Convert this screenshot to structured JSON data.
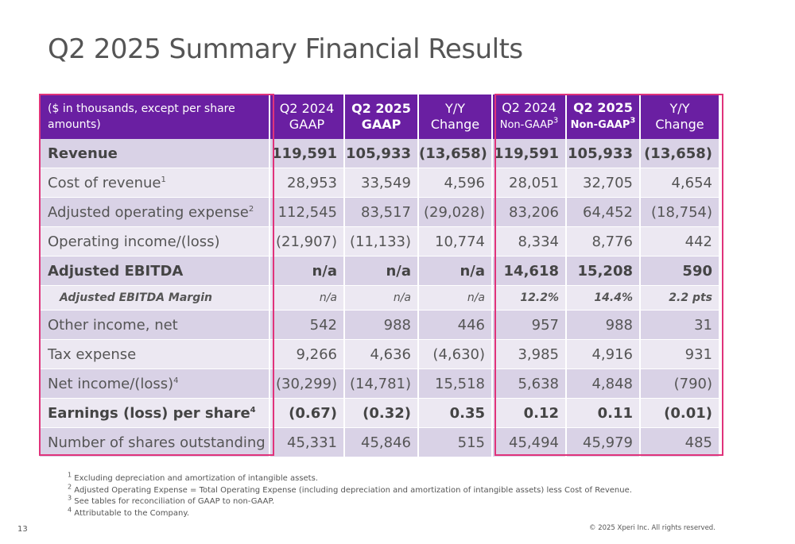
{
  "title": "Q2 2025 Summary Financial Results",
  "table": {
    "header": {
      "label": "($ in thousands, except per share amounts)",
      "cols": [
        {
          "line1": "Q2 2024",
          "line2": "GAAP",
          "sup": ""
        },
        {
          "line1": "Q2 2025",
          "line2": "GAAP",
          "sup": ""
        },
        {
          "line1": "Y/Y",
          "line2": "Change",
          "sup": ""
        },
        {
          "line1": "Q2 2024",
          "line2": "Non-GAAP",
          "sup": "3"
        },
        {
          "line1": "Q2 2025",
          "line2": "Non-GAAP",
          "sup": "3"
        },
        {
          "line1": "Y/Y",
          "line2": "Change",
          "sup": ""
        }
      ]
    },
    "rows": [
      {
        "label": "Revenue",
        "sup": "",
        "values": [
          "119,591",
          "105,933",
          "(13,658)",
          "119,591",
          "105,933",
          "(13,658)"
        ]
      },
      {
        "label": "Cost of revenue",
        "sup": "1",
        "values": [
          "28,953",
          "33,549",
          "4,596",
          "28,051",
          "32,705",
          "4,654"
        ]
      },
      {
        "label": "Adjusted operating expense",
        "sup": "2",
        "values": [
          "112,545",
          "83,517",
          "(29,028)",
          "83,206",
          "64,452",
          "(18,754)"
        ]
      },
      {
        "label": "Operating income/(loss)",
        "sup": "",
        "values": [
          "(21,907)",
          "(11,133)",
          "10,774",
          "8,334",
          "8,776",
          "442"
        ]
      },
      {
        "label": "Adjusted EBITDA",
        "sup": "",
        "values": [
          "n/a",
          "n/a",
          "n/a",
          "14,618",
          "15,208",
          "590"
        ]
      },
      {
        "label": "Adjusted EBITDA Margin",
        "sup": "",
        "values": [
          "n/a",
          "n/a",
          "n/a",
          "12.2%",
          "14.4%",
          "2.2 pts"
        ]
      },
      {
        "label": "Other income, net",
        "sup": "",
        "values": [
          "542",
          "988",
          "446",
          "957",
          "988",
          "31"
        ]
      },
      {
        "label": "Tax expense",
        "sup": "",
        "values": [
          "9,266",
          "4,636",
          "(4,630)",
          "3,985",
          "4,916",
          "931"
        ]
      },
      {
        "label": "Net income/(loss)",
        "sup": "4",
        "values": [
          "(30,299)",
          "(14,781)",
          "15,518",
          "5,638",
          "4,848",
          "(790)"
        ]
      },
      {
        "label": "Earnings (loss) per share",
        "sup": "4",
        "values": [
          "(0.67)",
          "(0.32)",
          "0.35",
          "0.12",
          "0.11",
          "(0.01)"
        ]
      },
      {
        "label": "Number of shares outstanding",
        "sup": "",
        "values": [
          "45,331",
          "45,846",
          "515",
          "45,494",
          "45,979",
          "485"
        ]
      }
    ]
  },
  "footnotes": [
    {
      "num": "1",
      "text": "Excluding depreciation and amortization of intangible assets."
    },
    {
      "num": "2",
      "text": "Adjusted Operating Expense = Total Operating Expense (including depreciation and amortization of intangible assets) less Cost of Revenue."
    },
    {
      "num": "3",
      "text": "See tables for reconciliation of GAAP to non-GAAP."
    },
    {
      "num": "4",
      "text": "Attributable to the Company."
    }
  ],
  "page_number": "13",
  "copyright": "© 2025 Xperi Inc. All rights reserved.",
  "colors": {
    "header_bg": "#6a1fa2",
    "row_dark": "#d9d2e6",
    "row_light": "#ece8f2",
    "highlight_border": "#e0337b"
  }
}
